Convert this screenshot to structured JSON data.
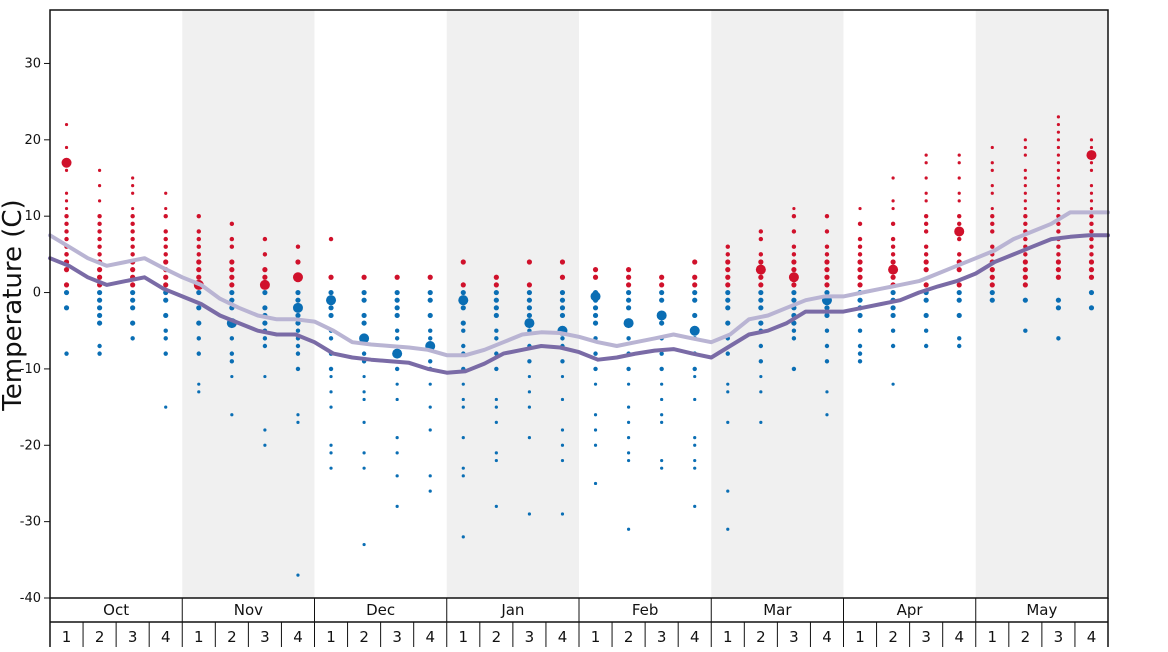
{
  "chart_data": {
    "type": "scatter",
    "title": "",
    "ylabel": "Temperature (C)",
    "xlabel": "",
    "ylim": [
      -40,
      37
    ],
    "yticks": [
      -40,
      -30,
      -20,
      -10,
      0,
      10,
      20,
      30
    ],
    "months": [
      "Oct",
      "Nov",
      "Dec",
      "Jan",
      "Feb",
      "Mar",
      "Apr",
      "May"
    ],
    "week_labels": [
      "1",
      "2",
      "3",
      "4"
    ],
    "shaded_months": [
      "Nov",
      "Jan",
      "Mar",
      "May"
    ],
    "colors": {
      "above_zero": "#d0112b",
      "below_zero": "#0a6eb4",
      "upper_line": "#b9b4d3",
      "lower_line": "#7a6ba6",
      "shade": "#f0f0f0",
      "axis": "#111111"
    },
    "series": [
      {
        "name": "",
        "style": "upper_line",
        "values": [
          7.5,
          6,
          4.5,
          3.5,
          4,
          4.5,
          3.2,
          2,
          1,
          -0.8,
          -2,
          -3,
          -3.5,
          -3.5,
          -3.8,
          -5,
          -6.5,
          -6.8,
          -7,
          -7.2,
          -7.5,
          -8.2,
          -8.2,
          -7.5,
          -6.5,
          -5.5,
          -5.2,
          -5.3,
          -5.8,
          -6.5,
          -7,
          -6.5,
          -6,
          -5.5,
          -6,
          -6.5,
          -5.5,
          -3.5,
          -3,
          -2,
          -1,
          -0.5,
          -0.5,
          0,
          0.5,
          1,
          1.5,
          2.5,
          3.5,
          4.5,
          5.5,
          7,
          8,
          9,
          10.5,
          10.5,
          10.5
        ]
      },
      {
        "name": "",
        "style": "lower_line",
        "values": [
          4.5,
          3.5,
          2,
          1,
          1.5,
          2,
          0.5,
          -0.5,
          -1.5,
          -3,
          -4,
          -5,
          -5.5,
          -5.5,
          -6.5,
          -8,
          -8.5,
          -8.8,
          -9,
          -9.2,
          -10,
          -10.5,
          -10.3,
          -9.3,
          -8,
          -7.5,
          -7,
          -7.2,
          -7.8,
          -8.8,
          -8.5,
          -8,
          -7.6,
          -7.4,
          -8,
          -8.5,
          -7,
          -5.5,
          -5,
          -4,
          -2.5,
          -2.5,
          -2.5,
          -2,
          -1.5,
          -1,
          0,
          0.8,
          1.5,
          2.5,
          4,
          5,
          6,
          7,
          7.3,
          7.5,
          7.5
        ]
      }
    ],
    "snowfall_points": [
      {
        "week": 1,
        "values": [
          22,
          19,
          17,
          16,
          13,
          12,
          11,
          10,
          9,
          8,
          7,
          6,
          5,
          5,
          4,
          3,
          1,
          0,
          -2,
          -8
        ]
      },
      {
        "week": 2,
        "values": [
          16,
          14,
          12,
          10,
          9,
          8,
          7,
          6,
          5,
          4,
          3,
          2,
          1,
          0,
          -1,
          -2,
          -3,
          -4,
          -7,
          -8
        ]
      },
      {
        "week": 3,
        "values": [
          15,
          14,
          13,
          11,
          10,
          9,
          8,
          7,
          6,
          5,
          4,
          3,
          2,
          1,
          0,
          -1,
          -2,
          -4,
          -6
        ]
      },
      {
        "week": 4,
        "values": [
          13,
          11,
          10,
          8,
          7,
          6,
          5,
          4,
          3,
          2,
          1,
          0,
          -1,
          -3,
          -5,
          -6,
          -8,
          -15
        ]
      },
      {
        "week": 5,
        "values": [
          10,
          8,
          7,
          6,
          5,
          4,
          3,
          2,
          1,
          0,
          -2,
          -4,
          -6,
          -8,
          -12,
          -13
        ]
      },
      {
        "week": 6,
        "values": [
          9,
          7,
          6,
          4,
          3,
          2,
          1,
          0,
          -1,
          -2,
          -4,
          -6,
          -8,
          -9,
          -11,
          -16
        ]
      },
      {
        "week": 7,
        "values": [
          7,
          5,
          3,
          2,
          1,
          0,
          -2,
          -3,
          -4,
          -5,
          -6,
          -7,
          -11,
          -18,
          -20
        ]
      },
      {
        "week": 8,
        "values": [
          6,
          4,
          2,
          0,
          -1,
          -2,
          -3,
          -4,
          -5,
          -6,
          -7,
          -8,
          -10,
          -16,
          -17,
          -37
        ]
      },
      {
        "week": 9,
        "values": [
          7,
          2,
          0,
          -1,
          -2,
          -3,
          -5,
          -6,
          -8,
          -10,
          -11,
          -13,
          -15,
          -20,
          -21,
          -23
        ]
      },
      {
        "week": 10,
        "values": [
          2,
          0,
          -1,
          -3,
          -4,
          -6,
          -8,
          -9,
          -11,
          -13,
          -14,
          -17,
          -21,
          -23,
          -33
        ]
      },
      {
        "week": 11,
        "values": [
          2,
          0,
          -1,
          -2,
          -3,
          -5,
          -6,
          -8,
          -10,
          -12,
          -14,
          -19,
          -21,
          -24,
          -28
        ]
      },
      {
        "week": 12,
        "values": [
          2,
          0,
          -1,
          -3,
          -5,
          -6,
          -7,
          -9,
          -10,
          -12,
          -15,
          -18,
          -24,
          -26
        ]
      },
      {
        "week": 13,
        "values": [
          4,
          1,
          0,
          -1,
          -2,
          -4,
          -5,
          -7,
          -8,
          -10,
          -12,
          -14,
          -15,
          -19,
          -23,
          -24,
          -32
        ]
      },
      {
        "week": 14,
        "values": [
          2,
          1,
          0,
          -1,
          -2,
          -3,
          -5,
          -6,
          -8,
          -10,
          -14,
          -15,
          -17,
          -21,
          -22,
          -28
        ]
      },
      {
        "week": 15,
        "values": [
          4,
          1,
          0,
          -1,
          -2,
          -3,
          -4,
          -5,
          -7,
          -9,
          -11,
          -13,
          -15,
          -19,
          -29
        ]
      },
      {
        "week": 16,
        "values": [
          4,
          2,
          0,
          -1,
          -2,
          -3,
          -5,
          -6,
          -7,
          -9,
          -11,
          -14,
          -18,
          -20,
          -22,
          -29
        ]
      },
      {
        "week": 17,
        "values": [
          3,
          2,
          0,
          -1,
          -2,
          -3,
          -4,
          -6,
          -8,
          -10,
          -12,
          -16,
          -18,
          -20,
          -25
        ]
      },
      {
        "week": 18,
        "values": [
          3,
          2,
          1,
          0,
          -1,
          -2,
          -4,
          -6,
          -8,
          -10,
          -12,
          -15,
          -17,
          -19,
          -21,
          -22,
          -31
        ]
      },
      {
        "week": 19,
        "values": [
          2,
          1,
          0,
          -1,
          -3,
          -4,
          -6,
          -8,
          -10,
          -12,
          -14,
          -16,
          -17,
          -22,
          -23
        ]
      },
      {
        "week": 20,
        "values": [
          4,
          2,
          1,
          0,
          -1,
          -3,
          -5,
          -6,
          -8,
          -10,
          -11,
          -14,
          -19,
          -20,
          -22,
          -23,
          -28
        ]
      },
      {
        "week": 21,
        "values": [
          6,
          5,
          4,
          3,
          2,
          1,
          0,
          -1,
          -2,
          -4,
          -6,
          -8,
          -12,
          -13,
          -17,
          -26,
          -31
        ]
      },
      {
        "week": 22,
        "values": [
          8,
          7,
          5,
          4,
          3,
          2,
          1,
          0,
          -1,
          -2,
          -4,
          -5,
          -7,
          -9,
          -11,
          -13,
          -17
        ]
      },
      {
        "week": 23,
        "values": [
          11,
          10,
          8,
          6,
          5,
          4,
          3,
          2,
          1,
          0,
          -1,
          -2,
          -3,
          -4,
          -5,
          -6,
          -10
        ]
      },
      {
        "week": 24,
        "values": [
          10,
          8,
          6,
          5,
          4,
          3,
          2,
          1,
          0,
          -1,
          -2,
          -3,
          -5,
          -7,
          -9,
          -13,
          -16
        ]
      },
      {
        "week": 25,
        "values": [
          11,
          9,
          7,
          6,
          5,
          4,
          3,
          2,
          1,
          0,
          -1,
          -2,
          -3,
          -5,
          -7,
          -8,
          -9
        ]
      },
      {
        "week": 26,
        "values": [
          15,
          12,
          11,
          9,
          7,
          6,
          5,
          4,
          3,
          2,
          1,
          0,
          -1,
          -2,
          -3,
          -5,
          -7,
          -12
        ]
      },
      {
        "week": 27,
        "values": [
          18,
          17,
          15,
          13,
          12,
          10,
          9,
          8,
          6,
          5,
          4,
          3,
          1,
          0,
          -1,
          -3,
          -5,
          -7
        ]
      },
      {
        "week": 28,
        "values": [
          18,
          17,
          15,
          13,
          12,
          10,
          9,
          8,
          7,
          5,
          4,
          3,
          1,
          0,
          -1,
          -3,
          -6,
          -7
        ]
      },
      {
        "week": 29,
        "values": [
          19,
          17,
          16,
          14,
          13,
          11,
          10,
          9,
          8,
          6,
          5,
          4,
          3,
          2,
          1,
          0,
          -1
        ]
      },
      {
        "week": 30,
        "values": [
          20,
          19,
          18,
          16,
          15,
          14,
          13,
          12,
          11,
          10,
          9,
          8,
          7,
          6,
          5,
          4,
          3,
          2,
          1,
          -1,
          -5
        ]
      },
      {
        "week": 31,
        "values": [
          23,
          22,
          21,
          20,
          19,
          18,
          17,
          16,
          15,
          14,
          13,
          12,
          11,
          10,
          9,
          8,
          7,
          6,
          5,
          4,
          3,
          2,
          -1,
          -2,
          -6
        ]
      },
      {
        "week": 32,
        "values": [
          20,
          19,
          18,
          17,
          16,
          14,
          13,
          12,
          11,
          10,
          9,
          8,
          7,
          6,
          5,
          4,
          3,
          2,
          0,
          -2
        ]
      }
    ],
    "large_points": [
      {
        "week": 1,
        "value": 17
      },
      {
        "week": 5,
        "value": 1
      },
      {
        "week": 6,
        "value": -4
      },
      {
        "week": 7,
        "value": 1
      },
      {
        "week": 8,
        "value": 2
      },
      {
        "week": 8,
        "value": -2
      },
      {
        "week": 9,
        "value": -1
      },
      {
        "week": 10,
        "value": -6
      },
      {
        "week": 11,
        "value": -8
      },
      {
        "week": 12,
        "value": -7
      },
      {
        "week": 13,
        "value": -1
      },
      {
        "week": 15,
        "value": -4
      },
      {
        "week": 16,
        "value": -5
      },
      {
        "week": 17,
        "value": -0.5
      },
      {
        "week": 18,
        "value": -4
      },
      {
        "week": 19,
        "value": -3
      },
      {
        "week": 20,
        "value": -5
      },
      {
        "week": 22,
        "value": 3
      },
      {
        "week": 23,
        "value": 2
      },
      {
        "week": 24,
        "value": -1
      },
      {
        "week": 26,
        "value": 3
      },
      {
        "week": 28,
        "value": 8
      },
      {
        "week": 32,
        "value": 18
      }
    ]
  }
}
